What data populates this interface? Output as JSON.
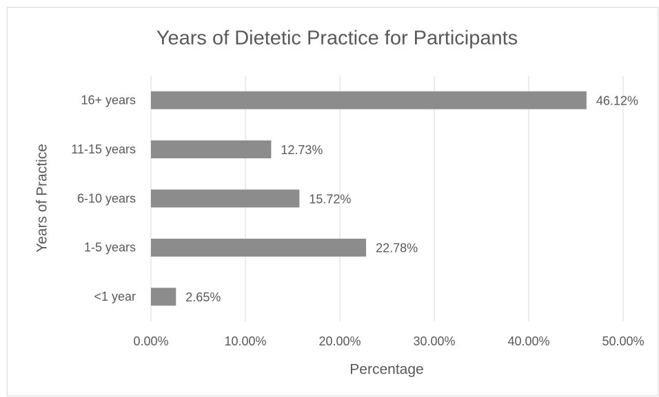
{
  "chart_data": {
    "type": "bar",
    "orientation": "horizontal",
    "title": "Years of Dietetic Practice for Participants",
    "x_label": "Percentage",
    "y_label": "Years of Practice",
    "categories": [
      "16+ years",
      "11-15 years",
      "6-10 years",
      "1-5 years",
      "<1 year"
    ],
    "values": [
      46.12,
      12.73,
      15.72,
      22.78,
      2.65
    ],
    "value_labels": [
      "46.12%",
      "12.73%",
      "15.72%",
      "22.78%",
      "2.65%"
    ],
    "color": "#8c8c8c",
    "xlim": [
      0,
      50
    ],
    "xticks": [
      {
        "value": 0,
        "label": "0.00%"
      },
      {
        "value": 10,
        "label": "10.00%"
      },
      {
        "value": 20,
        "label": "20.00%"
      },
      {
        "value": 30,
        "label": "30.00%"
      },
      {
        "value": 40,
        "label": "40.00%"
      },
      {
        "value": 50,
        "label": "50.00%"
      }
    ],
    "grid": true
  }
}
